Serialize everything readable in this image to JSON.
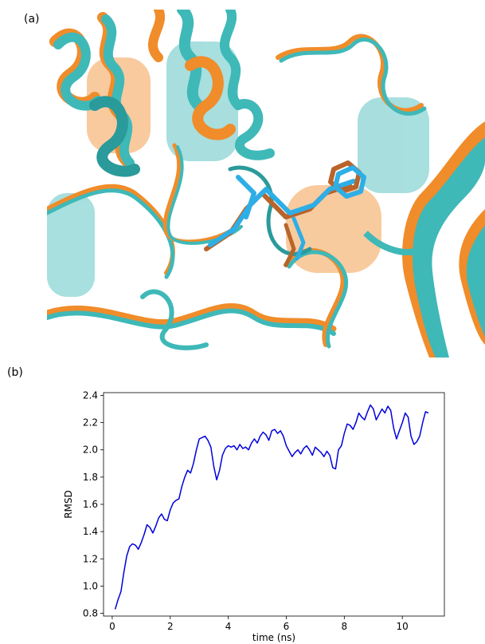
{
  "panels": {
    "a_label": "(a)",
    "b_label": "(b)"
  },
  "figure_a": {
    "colors": {
      "cyan": "#3fb8b8",
      "cyan_dark": "#2a9a9a",
      "orange": "#f08c2a",
      "orange_dark": "#c8661a",
      "ligand_blue": "#2eaee6",
      "ligand_brown": "#b8642a"
    }
  },
  "chart_data": {
    "type": "line",
    "xlabel": "time (ns)",
    "ylabel": "RMSD",
    "xlim": [
      -0.3,
      11.45
    ],
    "ylim": [
      0.78,
      2.42
    ],
    "xticks": [
      0,
      2,
      4,
      6,
      8,
      10
    ],
    "yticks": [
      0.8,
      1.0,
      1.2,
      1.4,
      1.6,
      1.8,
      2.0,
      2.2,
      2.4
    ],
    "grid": false,
    "line_color": "#0000dd",
    "series": [
      {
        "x": [
          0.1,
          0.2,
          0.3,
          0.4,
          0.5,
          0.6,
          0.7,
          0.8,
          0.9,
          1.0,
          1.1,
          1.2,
          1.3,
          1.4,
          1.5,
          1.6,
          1.7,
          1.8,
          1.9,
          2.0,
          2.1,
          2.2,
          2.3,
          2.4,
          2.5,
          2.6,
          2.7,
          2.8,
          2.9,
          3.0,
          3.1,
          3.2,
          3.3,
          3.4,
          3.5,
          3.6,
          3.7,
          3.8,
          3.9,
          4.0,
          4.1,
          4.2,
          4.3,
          4.4,
          4.5,
          4.6,
          4.7,
          4.8,
          4.9,
          5.0,
          5.1,
          5.2,
          5.3,
          5.4,
          5.5,
          5.6,
          5.7,
          5.8,
          5.9,
          6.0,
          6.1,
          6.2,
          6.3,
          6.4,
          6.5,
          6.6,
          6.7,
          6.8,
          6.9,
          7.0,
          7.1,
          7.2,
          7.3,
          7.4,
          7.5,
          7.6,
          7.7,
          7.8,
          7.9,
          8.0,
          8.1,
          8.2,
          8.3,
          8.4,
          8.5,
          8.6,
          8.7,
          8.8,
          8.9,
          9.0,
          9.1,
          9.2,
          9.3,
          9.4,
          9.5,
          9.6,
          9.7,
          9.8,
          9.9,
          10.0,
          10.1,
          10.2,
          10.3,
          10.4,
          10.5,
          10.6,
          10.7,
          10.8,
          10.9
        ],
        "y": [
          0.83,
          0.9,
          0.96,
          1.1,
          1.22,
          1.29,
          1.31,
          1.3,
          1.27,
          1.32,
          1.38,
          1.45,
          1.43,
          1.39,
          1.44,
          1.5,
          1.53,
          1.49,
          1.48,
          1.56,
          1.61,
          1.63,
          1.64,
          1.73,
          1.8,
          1.85,
          1.83,
          1.9,
          2.0,
          2.08,
          2.09,
          2.1,
          2.07,
          2.02,
          1.88,
          1.78,
          1.85,
          1.96,
          2.01,
          2.03,
          2.02,
          2.03,
          2.0,
          2.04,
          2.01,
          2.02,
          2.0,
          2.05,
          2.08,
          2.05,
          2.1,
          2.13,
          2.11,
          2.07,
          2.14,
          2.15,
          2.12,
          2.14,
          2.1,
          2.03,
          1.99,
          1.95,
          1.98,
          2.0,
          1.97,
          2.01,
          2.03,
          2.0,
          1.96,
          2.02,
          2.0,
          1.98,
          1.95,
          1.99,
          1.96,
          1.87,
          1.86,
          2.0,
          2.03,
          2.12,
          2.19,
          2.18,
          2.15,
          2.2,
          2.27,
          2.24,
          2.22,
          2.28,
          2.33,
          2.3,
          2.22,
          2.26,
          2.3,
          2.27,
          2.32,
          2.29,
          2.16,
          2.08,
          2.14,
          2.2,
          2.27,
          2.24,
          2.1,
          2.04,
          2.06,
          2.1,
          2.2,
          2.28,
          2.27
        ]
      }
    ]
  }
}
